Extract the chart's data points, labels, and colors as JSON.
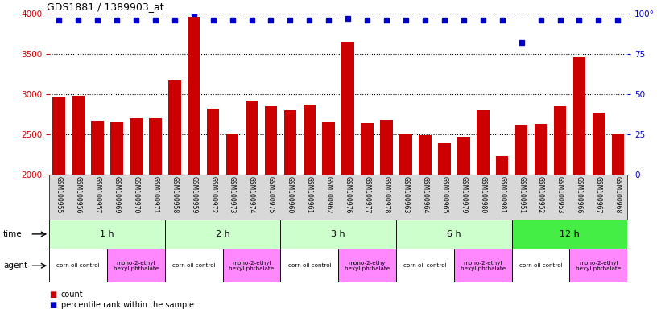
{
  "title": "GDS1881 / 1389903_at",
  "samples": [
    "GSM100955",
    "GSM100956",
    "GSM100957",
    "GSM100969",
    "GSM100970",
    "GSM100971",
    "GSM100958",
    "GSM100959",
    "GSM100972",
    "GSM100973",
    "GSM100974",
    "GSM100975",
    "GSM100960",
    "GSM100961",
    "GSM100962",
    "GSM100976",
    "GSM100977",
    "GSM100978",
    "GSM100963",
    "GSM100964",
    "GSM100965",
    "GSM100979",
    "GSM100980",
    "GSM100981",
    "GSM100951",
    "GSM100952",
    "GSM100953",
    "GSM100966",
    "GSM100967",
    "GSM100968"
  ],
  "counts": [
    2970,
    2980,
    2670,
    2650,
    2700,
    2700,
    3170,
    3960,
    2820,
    2510,
    2920,
    2850,
    2800,
    2870,
    2660,
    3650,
    2640,
    2680,
    2510,
    2490,
    2390,
    2470,
    2800,
    2230,
    2620,
    2630,
    2850,
    3460,
    2770,
    2510
  ],
  "percentiles": [
    96,
    96,
    96,
    96,
    96,
    96,
    96,
    100,
    96,
    96,
    96,
    96,
    96,
    96,
    96,
    97,
    96,
    96,
    96,
    96,
    96,
    96,
    96,
    96,
    82,
    96,
    96,
    96,
    96,
    96
  ],
  "bar_color": "#cc0000",
  "percentile_color": "#0000cc",
  "ylim": [
    2000,
    4000
  ],
  "y2lim": [
    0,
    100
  ],
  "yticks": [
    2000,
    2500,
    3000,
    3500,
    4000
  ],
  "y2ticks": [
    0,
    25,
    50,
    75,
    100
  ],
  "time_groups": [
    {
      "label": "1 h",
      "start": 0,
      "end": 6,
      "color": "#ccffcc"
    },
    {
      "label": "2 h",
      "start": 6,
      "end": 12,
      "color": "#ccffcc"
    },
    {
      "label": "3 h",
      "start": 12,
      "end": 18,
      "color": "#ccffcc"
    },
    {
      "label": "6 h",
      "start": 18,
      "end": 24,
      "color": "#ccffcc"
    },
    {
      "label": "12 h",
      "start": 24,
      "end": 30,
      "color": "#44ee44"
    }
  ],
  "agent_groups": [
    {
      "label": "corn oil control",
      "start": 0,
      "end": 3,
      "color": "#ffffff"
    },
    {
      "label": "mono-2-ethyl\nhexyl phthalate",
      "start": 3,
      "end": 6,
      "color": "#ff88ff"
    },
    {
      "label": "corn oil control",
      "start": 6,
      "end": 9,
      "color": "#ffffff"
    },
    {
      "label": "mono-2-ethyl\nhexyl phthalate",
      "start": 9,
      "end": 12,
      "color": "#ff88ff"
    },
    {
      "label": "corn oil control",
      "start": 12,
      "end": 15,
      "color": "#ffffff"
    },
    {
      "label": "mono-2-ethyl\nhexyl phthalate",
      "start": 15,
      "end": 18,
      "color": "#ff88ff"
    },
    {
      "label": "corn oil control",
      "start": 18,
      "end": 21,
      "color": "#ffffff"
    },
    {
      "label": "mono-2-ethyl\nhexyl phthalate",
      "start": 21,
      "end": 24,
      "color": "#ff88ff"
    },
    {
      "label": "corn oil control",
      "start": 24,
      "end": 27,
      "color": "#ffffff"
    },
    {
      "label": "mono-2-ethyl\nhexyl phthalate",
      "start": 27,
      "end": 30,
      "color": "#ff88ff"
    }
  ],
  "gsm_bg": "#d8d8d8",
  "bg_color": "#ffffff",
  "tick_color_left": "#cc0000",
  "tick_color_right": "#0000cc"
}
